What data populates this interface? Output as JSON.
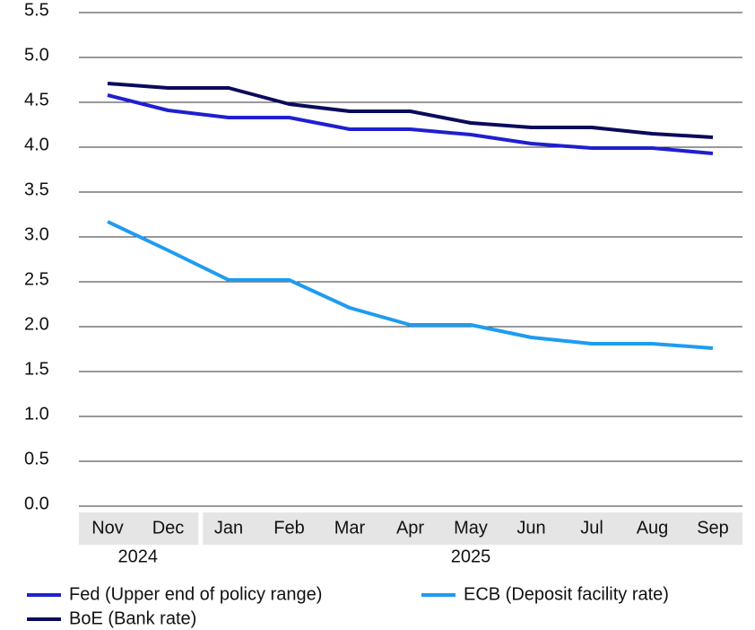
{
  "chart_data": {
    "type": "line",
    "categories": [
      "Nov",
      "Dec",
      "Jan",
      "Feb",
      "Mar",
      "Apr",
      "May",
      "Jun",
      "Jul",
      "Aug",
      "Sep"
    ],
    "x_groups": [
      "2024",
      "2025"
    ],
    "series": [
      {
        "name": "Fed (Upper end of policy range)",
        "color": "#1f1fd0",
        "values": [
          4.58,
          4.41,
          4.33,
          4.33,
          4.2,
          4.2,
          4.14,
          4.04,
          3.99,
          3.99,
          3.93
        ]
      },
      {
        "name": "ECB (Deposit facility rate)",
        "color": "#1e9cf0",
        "values": [
          3.17,
          2.85,
          2.52,
          2.52,
          2.21,
          2.02,
          2.02,
          1.88,
          1.81,
          1.81,
          1.76
        ]
      },
      {
        "name": "BoE (Bank rate)",
        "color": "#0b0b5c",
        "values": [
          4.71,
          4.66,
          4.66,
          4.48,
          4.4,
          4.4,
          4.27,
          4.22,
          4.22,
          4.15,
          4.11
        ]
      }
    ],
    "ylim": [
      0,
      5.5
    ],
    "yticks": [
      {
        "value": 0,
        "label": "0.0"
      },
      0.5,
      {
        "value": 1,
        "label": "1.0"
      },
      1.5,
      {
        "value": 2,
        "label": "2.0"
      },
      2.5,
      {
        "value": 3,
        "label": "3.0"
      },
      3.5,
      {
        "value": 4,
        "label": "4.0"
      },
      4.5,
      {
        "value": 5,
        "label": "5.0"
      },
      5.5
    ],
    "grid": true
  }
}
